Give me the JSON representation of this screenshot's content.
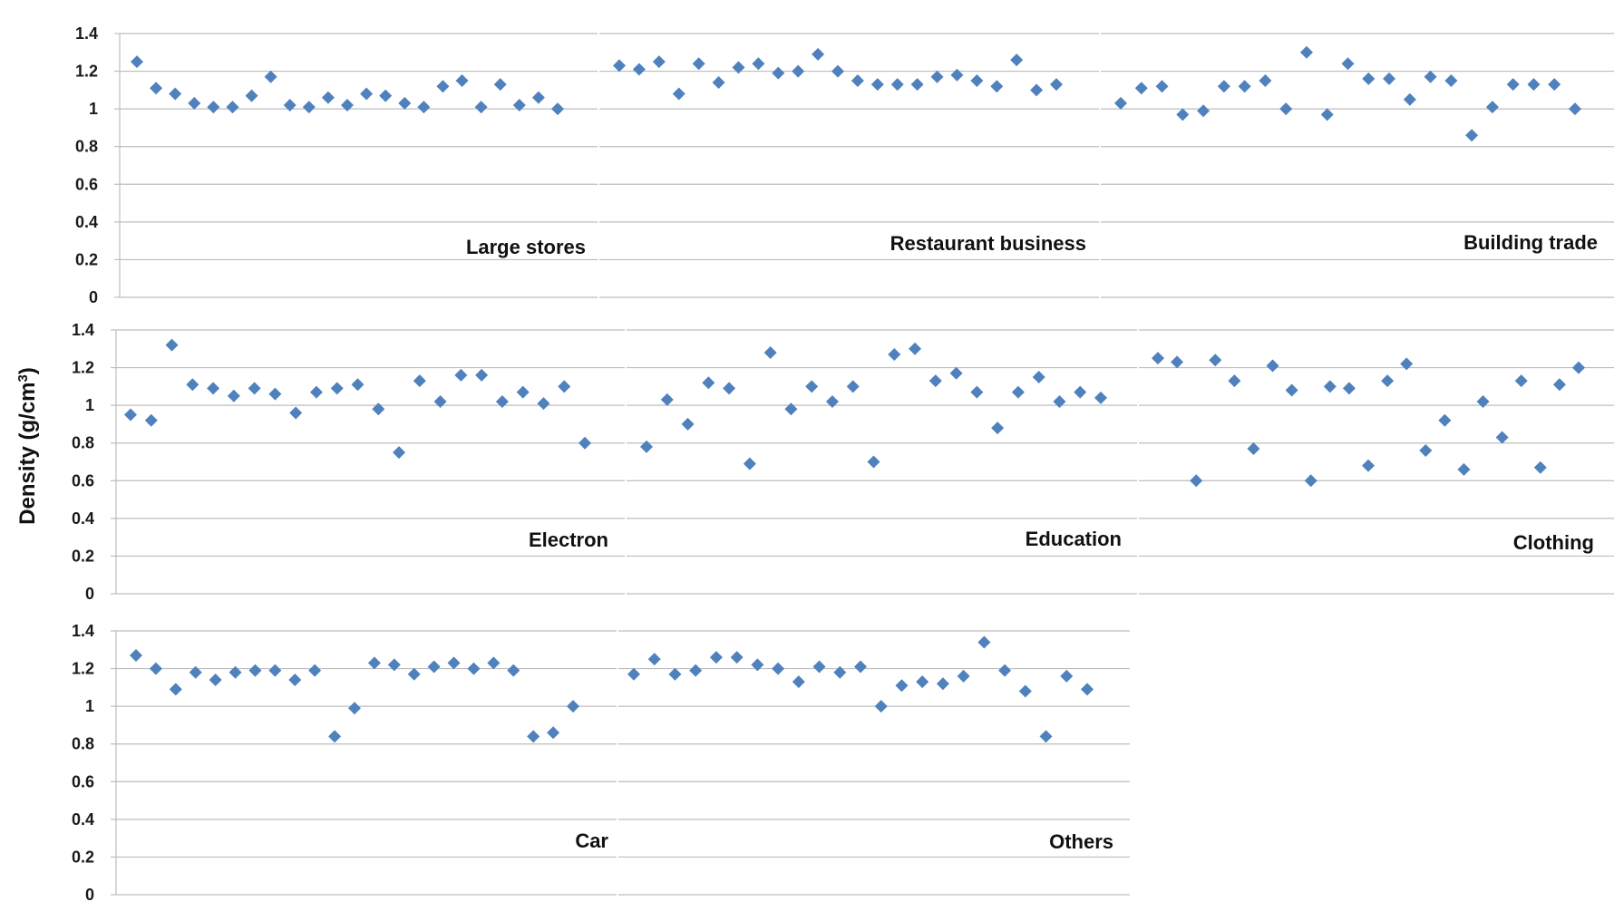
{
  "figure": {
    "ylabel": "Density (g/cm",
    "ylabel_sup": "3",
    "ylabel_close": ")"
  },
  "chart_data": [
    {
      "type": "scatter",
      "title": "Large stores",
      "ylim": [
        0,
        1.4
      ],
      "yticks": [
        "0",
        "0.2",
        "0.4",
        "0.6",
        "0.8",
        "1",
        "1.2",
        "1.4"
      ],
      "grid": true,
      "color": "#4f81bd",
      "marker": "diamond",
      "values": [
        1.25,
        1.11,
        1.08,
        1.03,
        1.01,
        1.01,
        1.07,
        1.17,
        1.02,
        1.01,
        1.06,
        1.02,
        1.08,
        1.07,
        1.03,
        1.01,
        1.12,
        1.15,
        1.01,
        1.13,
        1.02,
        1.06,
        1.0
      ]
    },
    {
      "type": "scatter",
      "title": "Restaurant business",
      "ylim": [
        0,
        1.4
      ],
      "grid": true,
      "color": "#4f81bd",
      "marker": "diamond",
      "values": [
        1.23,
        1.21,
        1.25,
        1.08,
        1.24,
        1.14,
        1.22,
        1.24,
        1.19,
        1.2,
        1.29,
        1.2,
        1.15,
        1.13,
        1.13,
        1.13,
        1.17,
        1.18,
        1.15,
        1.12,
        1.26,
        1.1,
        1.13
      ]
    },
    {
      "type": "scatter",
      "title": "Building trade",
      "ylim": [
        0,
        1.4
      ],
      "grid": true,
      "color": "#4f81bd",
      "marker": "diamond",
      "values": [
        1.03,
        1.11,
        1.12,
        0.97,
        0.99,
        1.12,
        1.12,
        1.15,
        1.0,
        1.3,
        0.97,
        1.24,
        1.16,
        1.16,
        1.05,
        1.17,
        1.15,
        0.86,
        1.01,
        1.13,
        1.13,
        1.13,
        1.0
      ]
    },
    {
      "type": "scatter",
      "title": "Electron",
      "ylim": [
        0,
        1.4
      ],
      "yticks": [
        "0",
        "0.2",
        "0.4",
        "0.6",
        "0.8",
        "1",
        "1.2",
        "1.4"
      ],
      "grid": true,
      "color": "#4f81bd",
      "marker": "diamond",
      "values": [
        0.95,
        0.92,
        1.32,
        1.11,
        1.09,
        1.05,
        1.09,
        1.06,
        0.96,
        1.07,
        1.09,
        1.11,
        0.98,
        0.75,
        1.13,
        1.02,
        1.16,
        1.16,
        1.02,
        1.07,
        1.01,
        1.1,
        0.8
      ]
    },
    {
      "type": "scatter",
      "title": "Education",
      "ylim": [
        0,
        1.4
      ],
      "grid": true,
      "color": "#4f81bd",
      "marker": "diamond",
      "values": [
        0.78,
        1.03,
        0.9,
        1.12,
        1.09,
        0.69,
        1.28,
        0.98,
        1.1,
        1.02,
        1.1,
        0.7,
        1.27,
        1.3,
        1.13,
        1.17,
        1.07,
        0.88,
        1.07,
        1.15,
        1.02,
        1.07,
        1.04
      ]
    },
    {
      "type": "scatter",
      "title": "Clothing",
      "ylim": [
        0,
        1.4
      ],
      "grid": true,
      "color": "#4f81bd",
      "marker": "diamond",
      "values": [
        1.25,
        1.23,
        0.6,
        1.24,
        1.13,
        0.77,
        1.21,
        1.08,
        0.6,
        1.1,
        1.09,
        0.68,
        1.13,
        1.22,
        0.76,
        0.92,
        0.66,
        1.02,
        0.83,
        1.13,
        0.67,
        1.11,
        1.2
      ]
    },
    {
      "type": "scatter",
      "title": "Car",
      "ylim": [
        0,
        1.4
      ],
      "yticks": [
        "0",
        "0.2",
        "0.4",
        "0.6",
        "0.8",
        "1",
        "1.2",
        "1.4"
      ],
      "grid": true,
      "color": "#4f81bd",
      "marker": "diamond",
      "values": [
        1.27,
        1.2,
        1.09,
        1.18,
        1.14,
        1.18,
        1.19,
        1.19,
        1.14,
        1.19,
        0.84,
        0.99,
        1.23,
        1.22,
        1.17,
        1.21,
        1.23,
        1.2,
        1.23,
        1.19,
        0.84,
        0.86,
        1.0
      ]
    },
    {
      "type": "scatter",
      "title": "Others",
      "ylim": [
        0,
        1.4
      ],
      "grid": true,
      "color": "#4f81bd",
      "marker": "diamond",
      "values": [
        1.17,
        1.25,
        1.17,
        1.19,
        1.26,
        1.26,
        1.22,
        1.2,
        1.13,
        1.21,
        1.18,
        1.21,
        1.0,
        1.11,
        1.13,
        1.12,
        1.16,
        1.34,
        1.19,
        1.08,
        0.84,
        1.16,
        1.09
      ]
    }
  ]
}
